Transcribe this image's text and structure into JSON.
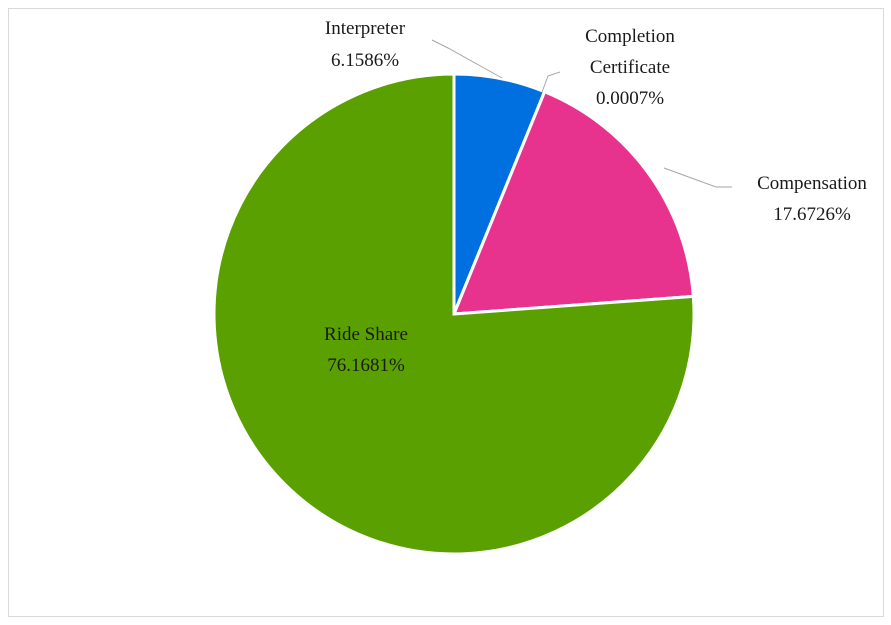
{
  "chart_data": {
    "type": "pie",
    "title": "",
    "series": [
      {
        "name": "",
        "slices": [
          {
            "label": "Interpreter",
            "value": 6.1586,
            "value_label": "6.1586%",
            "color": "#0070e0"
          },
          {
            "label": "Completion Certificate",
            "value": 0.0007,
            "value_label": "0.0007%",
            "color": "#ffffff"
          },
          {
            "label": "Compensation",
            "value": 17.6726,
            "value_label": "17.6726%",
            "color": "#e8338e"
          },
          {
            "label": "Ride Share",
            "value": 76.1681,
            "value_label": "76.1681%",
            "color": "#5aa000"
          }
        ]
      }
    ],
    "start_angle_deg": 0,
    "direction": "clockwise",
    "legend": "none"
  },
  "labels": {
    "interpreter": {
      "name": "Interpreter",
      "value": "6.1586%"
    },
    "completion_certificate": {
      "name_line1": "Completion",
      "name_line2": "Certificate",
      "value": "0.0007%"
    },
    "compensation": {
      "name": "Compensation",
      "value": "17.6726%"
    },
    "ride_share": {
      "name": "Ride Share",
      "value": "76.1681%"
    }
  }
}
